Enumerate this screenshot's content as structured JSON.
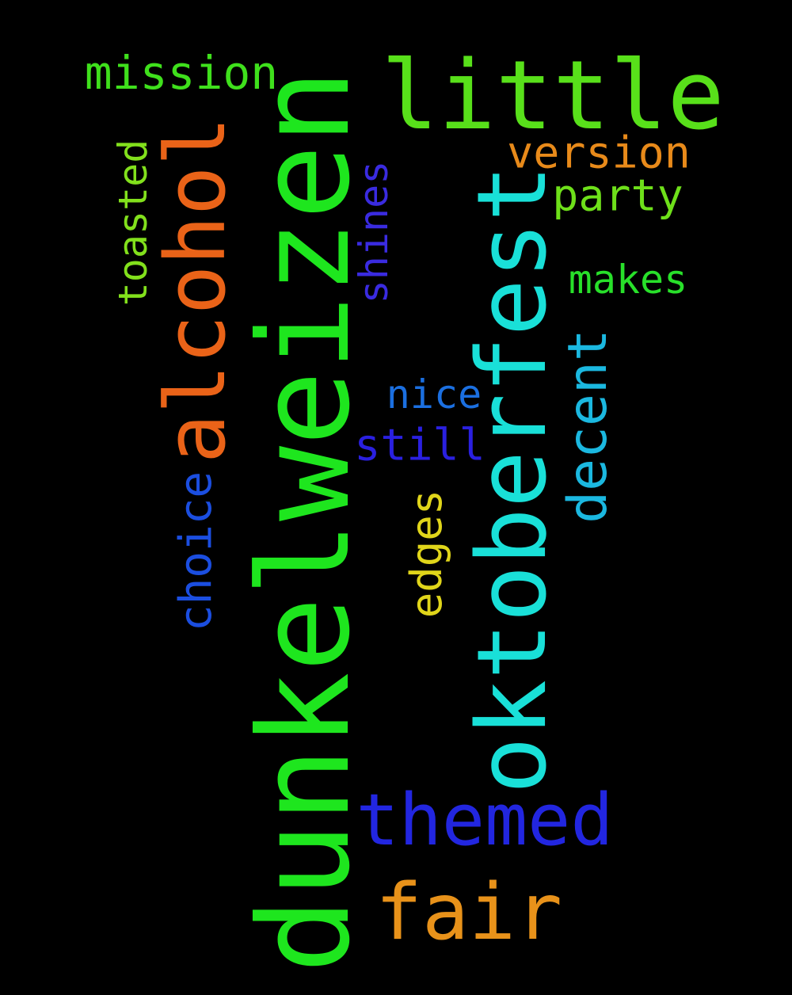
{
  "words": [
    {
      "text": "dunkelweizen",
      "color": "#1ee61e"
    },
    {
      "text": "oktoberfest",
      "color": "#19e0d8"
    },
    {
      "text": "little",
      "color": "#58e01a"
    },
    {
      "text": "alcohol",
      "color": "#ea6318"
    },
    {
      "text": "themed",
      "color": "#2226e0"
    },
    {
      "text": "fair",
      "color": "#e8921a"
    },
    {
      "text": "decent",
      "color": "#1bb8e0"
    },
    {
      "text": "mission",
      "color": "#3fe01c"
    },
    {
      "text": "version",
      "color": "#e88a1a"
    },
    {
      "text": "party",
      "color": "#6ee01a"
    },
    {
      "text": "choice",
      "color": "#1b4ee0"
    },
    {
      "text": "toasted",
      "color": "#82e01c"
    },
    {
      "text": "shines",
      "color": "#3a2be0"
    },
    {
      "text": "makes",
      "color": "#28e02a"
    },
    {
      "text": "nice",
      "color": "#1b6fe0"
    },
    {
      "text": "still",
      "color": "#2a20e0"
    },
    {
      "text": "edges",
      "color": "#e0d51a"
    }
  ]
}
